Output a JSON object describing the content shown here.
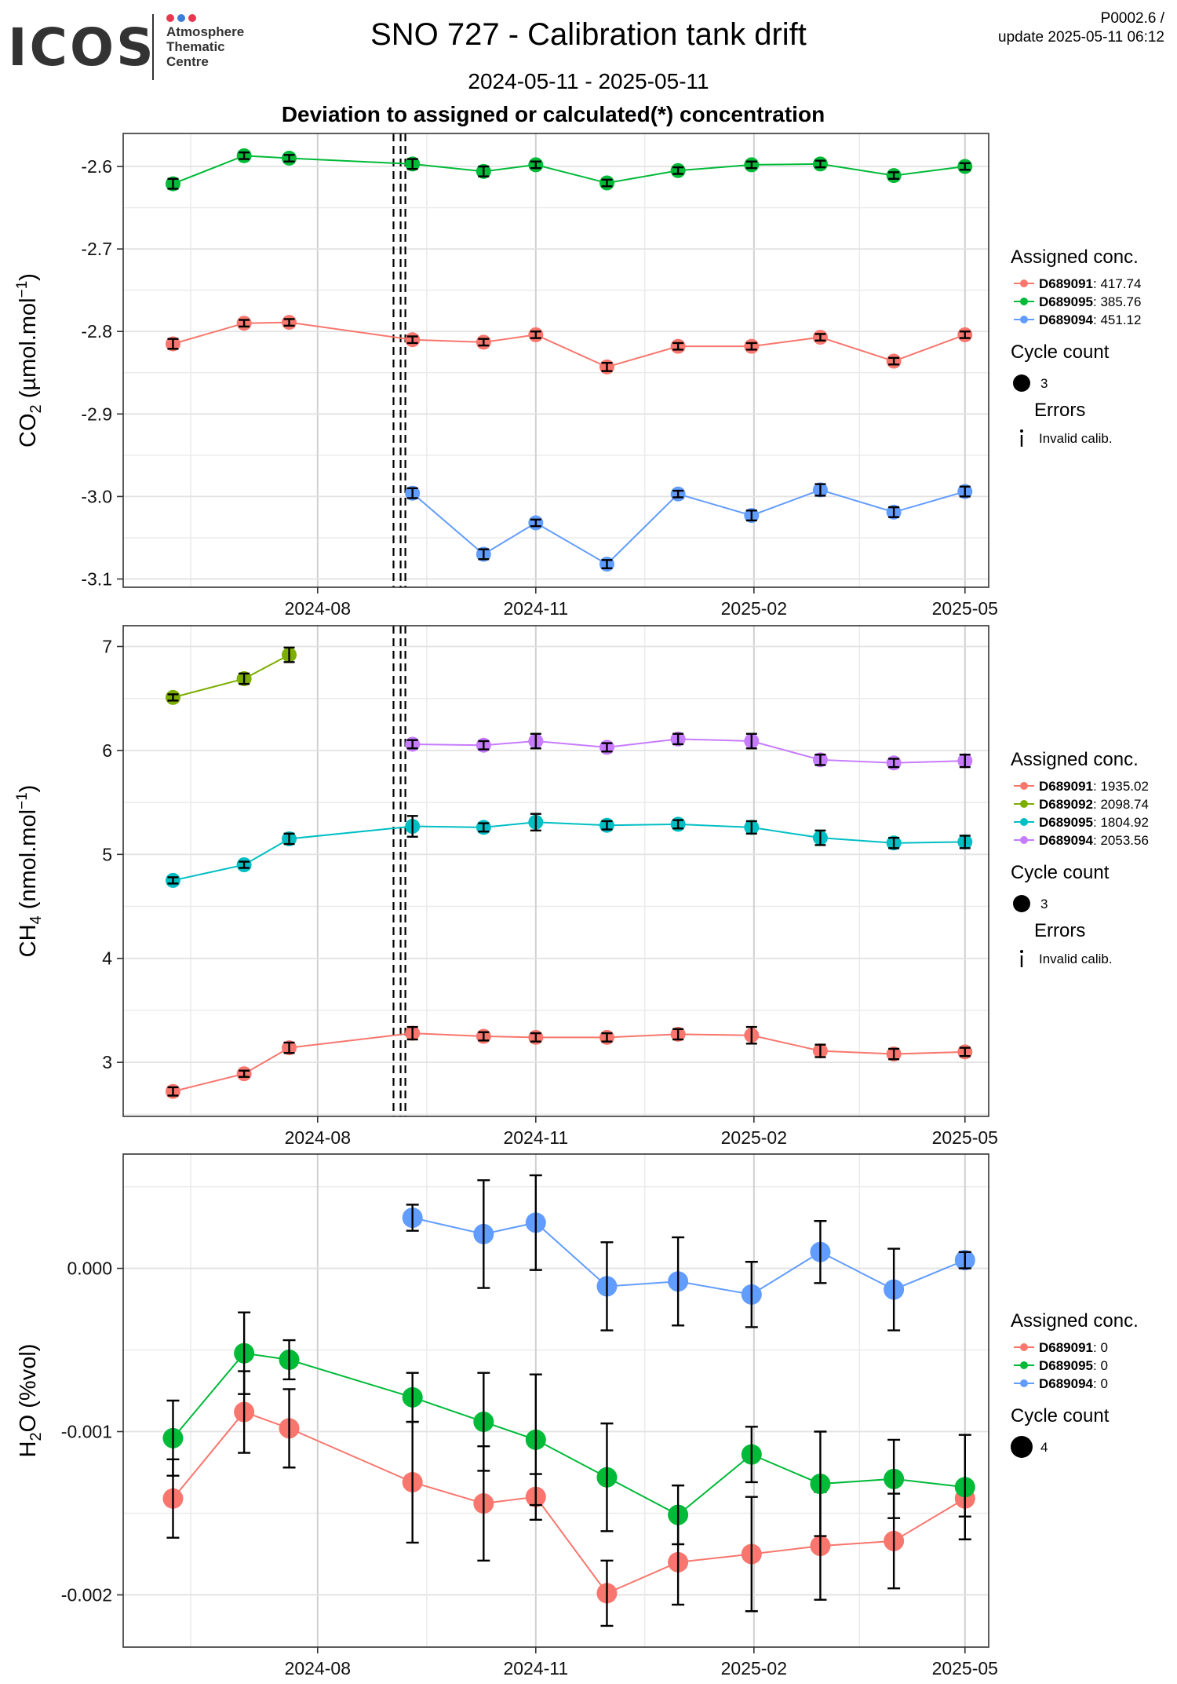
{
  "header": {
    "logo_text": "ICOS",
    "logo_lines": [
      "Atmosphere",
      "Thematic",
      "Centre"
    ],
    "logo_dot_colors": [
      "#e8384f",
      "#3b7dd8",
      "#e8384f"
    ],
    "title": "SNO 727 - Calibration tank drift",
    "date_range": "2024-05-11 - 2025-05-11",
    "subtitle": "Deviation to assigned or calculated(*) concentration",
    "version": "P0002.6 /",
    "update": "update  2025-05-11 06:12"
  },
  "chart_data": [
    {
      "type": "line",
      "ylabel_main": "CO",
      "ylabel_sub": "2",
      "ylabel_rest": " (µmol.mol",
      "ylabel_sup": "−1",
      "ylabel_end": ")",
      "ylim": [
        -3.11,
        -2.56
      ],
      "yticks": [
        -3.1,
        -3.0,
        -2.9,
        -2.8,
        -2.7,
        -2.6
      ],
      "ytick_labels": [
        "-3.1",
        "-3.0",
        "-2.9",
        "-2.8",
        "-2.7",
        "-2.6"
      ],
      "xticks": [
        "2024-08-01",
        "2024-11-01",
        "2025-02-01",
        "2025-05-01"
      ],
      "xtick_labels": [
        "2024-08",
        "2024-11",
        "2025-02",
        "2025-05"
      ],
      "dashed_lines": [
        "2024-09-02",
        "2024-09-05",
        "2024-09-07"
      ],
      "legend": {
        "title": "Assigned conc.",
        "entries": [
          {
            "id": "D689091",
            "value": ": 417.74",
            "color": "#f8766d"
          },
          {
            "id": "D689095",
            "value": ": 385.76",
            "color": "#00ba38"
          },
          {
            "id": "D689094",
            "value": ": 451.12",
            "color": "#619cff"
          }
        ],
        "cycle_title": "Cycle count",
        "cycle_value": "3",
        "errors_title": "Errors",
        "errors_label": "Invalid calib."
      },
      "series": [
        {
          "name": "D689091",
          "color": "#f8766d",
          "x": [
            "2024-06-01",
            "2024-07-01",
            "2024-07-20",
            "2024-09-10",
            "2024-10-10",
            "2024-11-01",
            "2024-12-01",
            "2024-12-31",
            "2025-01-31",
            "2025-03-01",
            "2025-04-01",
            "2025-05-01"
          ],
          "y": [
            -2.815,
            -2.79,
            -2.789,
            -2.81,
            -2.813,
            -2.804,
            -2.843,
            -2.818,
            -2.818,
            -2.807,
            -2.836,
            -2.804
          ],
          "err": [
            0.006,
            0.004,
            0.004,
            0.004,
            0.004,
            0.004,
            0.005,
            0.004,
            0.004,
            0.004,
            0.004,
            0.004
          ]
        },
        {
          "name": "D689095",
          "color": "#00ba38",
          "x": [
            "2024-06-01",
            "2024-07-01",
            "2024-07-20",
            "2024-09-10",
            "2024-10-10",
            "2024-11-01",
            "2024-12-01",
            "2024-12-31",
            "2025-01-31",
            "2025-03-01",
            "2025-04-01",
            "2025-05-01"
          ],
          "y": [
            -2.621,
            -2.587,
            -2.59,
            -2.597,
            -2.606,
            -2.598,
            -2.62,
            -2.605,
            -2.598,
            -2.597,
            -2.611,
            -2.6
          ],
          "err": [
            0.006,
            0.004,
            0.004,
            0.006,
            0.006,
            0.004,
            0.004,
            0.004,
            0.004,
            0.004,
            0.004,
            0.004
          ]
        },
        {
          "name": "D689094",
          "color": "#619cff",
          "x": [
            "2024-09-10",
            "2024-10-10",
            "2024-11-01",
            "2024-12-01",
            "2024-12-31",
            "2025-01-31",
            "2025-03-01",
            "2025-04-01",
            "2025-05-01"
          ],
          "y": [
            -2.996,
            -3.07,
            -3.032,
            -3.082,
            -2.997,
            -3.023,
            -2.992,
            -3.019,
            -2.994
          ],
          "err": [
            0.006,
            0.006,
            0.004,
            0.005,
            0.004,
            0.006,
            0.007,
            0.006,
            0.006
          ]
        }
      ]
    },
    {
      "type": "line",
      "ylabel_main": "CH",
      "ylabel_sub": "4",
      "ylabel_rest": " (nmol.mol",
      "ylabel_sup": "−1",
      "ylabel_end": ")",
      "ylim": [
        2.48,
        7.2
      ],
      "yticks": [
        3,
        4,
        5,
        6,
        7
      ],
      "ytick_labels": [
        "3",
        "4",
        "5",
        "6",
        "7"
      ],
      "xticks": [
        "2024-08-01",
        "2024-11-01",
        "2025-02-01",
        "2025-05-01"
      ],
      "xtick_labels": [
        "2024-08",
        "2024-11",
        "2025-02",
        "2025-05"
      ],
      "dashed_lines": [
        "2024-09-02",
        "2024-09-05",
        "2024-09-07"
      ],
      "legend": {
        "title": "Assigned conc.",
        "entries": [
          {
            "id": "D689091",
            "value": ": 1935.02",
            "color": "#f8766d"
          },
          {
            "id": "D689092",
            "value": ": 2098.74",
            "color": "#7cae00"
          },
          {
            "id": "D689095",
            "value": ": 1804.92",
            "color": "#00bfc4"
          },
          {
            "id": "D689094",
            "value": ": 2053.56",
            "color": "#c77cff"
          }
        ],
        "cycle_title": "Cycle count",
        "cycle_value": "3",
        "errors_title": "Errors",
        "errors_label": "Invalid calib."
      },
      "series": [
        {
          "name": "D689091",
          "color": "#f8766d",
          "x": [
            "2024-06-01",
            "2024-07-01",
            "2024-07-20",
            "2024-09-10",
            "2024-10-10",
            "2024-11-01",
            "2024-12-01",
            "2024-12-31",
            "2025-01-31",
            "2025-03-01",
            "2025-04-01",
            "2025-05-01"
          ],
          "y": [
            2.72,
            2.89,
            3.14,
            3.28,
            3.25,
            3.24,
            3.24,
            3.27,
            3.26,
            3.11,
            3.08,
            3.1
          ],
          "err": [
            0.04,
            0.03,
            0.05,
            0.06,
            0.04,
            0.04,
            0.04,
            0.05,
            0.08,
            0.06,
            0.05,
            0.04
          ]
        },
        {
          "name": "D689092",
          "color": "#7cae00",
          "x": [
            "2024-06-01",
            "2024-07-01",
            "2024-07-20"
          ],
          "y": [
            6.51,
            6.69,
            6.92
          ],
          "err": [
            0.03,
            0.05,
            0.07
          ]
        },
        {
          "name": "D689095",
          "color": "#00bfc4",
          "x": [
            "2024-06-01",
            "2024-07-01",
            "2024-07-20",
            "2024-09-10",
            "2024-10-10",
            "2024-11-01",
            "2024-12-01",
            "2024-12-31",
            "2025-01-31",
            "2025-03-01",
            "2025-04-01",
            "2025-05-01"
          ],
          "y": [
            4.75,
            4.9,
            5.15,
            5.27,
            5.26,
            5.31,
            5.28,
            5.29,
            5.26,
            5.16,
            5.11,
            5.12
          ],
          "err": [
            0.03,
            0.03,
            0.05,
            0.1,
            0.04,
            0.08,
            0.04,
            0.04,
            0.06,
            0.07,
            0.05,
            0.06
          ]
        },
        {
          "name": "D689094",
          "color": "#c77cff",
          "x": [
            "2024-09-10",
            "2024-10-10",
            "2024-11-01",
            "2024-12-01",
            "2024-12-31",
            "2025-01-31",
            "2025-03-01",
            "2025-04-01",
            "2025-05-01"
          ],
          "y": [
            6.06,
            6.05,
            6.09,
            6.03,
            6.11,
            6.09,
            5.91,
            5.88,
            5.9
          ],
          "err": [
            0.04,
            0.04,
            0.07,
            0.04,
            0.05,
            0.07,
            0.05,
            0.04,
            0.06
          ]
        }
      ]
    },
    {
      "type": "line",
      "ylabel_main": "H",
      "ylabel_sub": "2",
      "ylabel_rest": "O (%vol)",
      "ylabel_sup": "",
      "ylabel_end": "",
      "ylim": [
        -0.00232,
        0.0007
      ],
      "yticks": [
        -0.002,
        -0.001,
        0.0
      ],
      "ytick_labels": [
        "-0.002",
        "-0.001",
        "0.000"
      ],
      "xticks": [
        "2024-08-01",
        "2024-11-01",
        "2025-02-01",
        "2025-05-01"
      ],
      "xtick_labels": [
        "2024-08",
        "2024-11",
        "2025-02",
        "2025-05"
      ],
      "dashed_lines": [],
      "legend": {
        "title": "Assigned conc.",
        "entries": [
          {
            "id": "D689091",
            "value": ": 0",
            "color": "#f8766d"
          },
          {
            "id": "D689095",
            "value": ": 0",
            "color": "#00ba38"
          },
          {
            "id": "D689094",
            "value": ": 0",
            "color": "#619cff"
          }
        ],
        "cycle_title": "Cycle count",
        "cycle_value": "4",
        "errors_title": "",
        "errors_label": ""
      },
      "series": [
        {
          "name": "D689091",
          "color": "#f8766d",
          "x": [
            "2024-06-01",
            "2024-07-01",
            "2024-07-20",
            "2024-09-10",
            "2024-10-10",
            "2024-11-01",
            "2024-12-01",
            "2024-12-31",
            "2025-01-31",
            "2025-03-01",
            "2025-04-01",
            "2025-05-01"
          ],
          "y": [
            -0.00141,
            -0.00088,
            -0.00098,
            -0.00131,
            -0.00144,
            -0.0014,
            -0.00199,
            -0.0018,
            -0.00175,
            -0.0017,
            -0.00167,
            -0.00141
          ],
          "err": [
            0.00024,
            0.00025,
            0.00024,
            0.00037,
            0.00035,
            0.00014,
            0.0002,
            0.00026,
            0.00035,
            0.00033,
            0.00029,
            0.00011
          ]
        },
        {
          "name": "D689095",
          "color": "#00ba38",
          "x": [
            "2024-06-01",
            "2024-07-01",
            "2024-07-20",
            "2024-09-10",
            "2024-10-10",
            "2024-11-01",
            "2024-12-01",
            "2024-12-31",
            "2025-01-31",
            "2025-03-01",
            "2025-04-01",
            "2025-05-01"
          ],
          "y": [
            -0.00104,
            -0.00052,
            -0.00056,
            -0.00079,
            -0.00094,
            -0.00105,
            -0.00128,
            -0.00151,
            -0.00114,
            -0.00132,
            -0.00129,
            -0.00134
          ],
          "err": [
            0.00023,
            0.00025,
            0.00012,
            0.00015,
            0.0003,
            0.0004,
            0.00033,
            0.00018,
            0.00017,
            0.00032,
            0.00024,
            0.00032
          ]
        },
        {
          "name": "D689094",
          "color": "#619cff",
          "x": [
            "2024-09-10",
            "2024-10-10",
            "2024-11-01",
            "2024-12-01",
            "2024-12-31",
            "2025-01-31",
            "2025-03-01",
            "2025-04-01",
            "2025-05-01"
          ],
          "y": [
            0.00031,
            0.00021,
            0.00028,
            -0.00011,
            -8e-05,
            -0.00016,
            0.0001,
            -0.00013,
            5e-05
          ],
          "err": [
            8e-05,
            0.00033,
            0.00029,
            0.00027,
            0.00027,
            0.0002,
            0.00019,
            0.00025,
            5e-05
          ]
        }
      ]
    }
  ]
}
